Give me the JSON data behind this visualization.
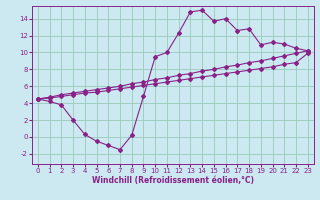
{
  "bg_color": "#cce8f0",
  "line_color": "#882288",
  "grid_color": "#99ccbb",
  "xlim": [
    -0.5,
    23.5
  ],
  "ylim": [
    -3.2,
    15.5
  ],
  "xticks": [
    0,
    1,
    2,
    3,
    4,
    5,
    6,
    7,
    8,
    9,
    10,
    11,
    12,
    13,
    14,
    15,
    16,
    17,
    18,
    19,
    20,
    21,
    22,
    23
  ],
  "yticks": [
    -2,
    0,
    2,
    4,
    6,
    8,
    10,
    12,
    14
  ],
  "curve1_x": [
    0,
    1,
    2,
    3,
    4,
    5,
    6,
    7,
    8,
    9,
    10,
    11,
    12,
    13,
    14,
    15,
    16,
    17,
    18,
    19,
    20,
    21,
    22,
    23
  ],
  "curve1_y": [
    4.5,
    4.2,
    3.8,
    2.0,
    0.3,
    -0.5,
    -1.0,
    -1.5,
    0.2,
    4.8,
    9.5,
    10.0,
    12.3,
    14.8,
    15.0,
    13.7,
    14.0,
    12.6,
    12.8,
    10.9,
    11.2,
    11.0,
    10.5,
    10.2
  ],
  "curve2_x": [
    0,
    1,
    2,
    3,
    4,
    5,
    6,
    7,
    8,
    9,
    10,
    11,
    12,
    13,
    14,
    15,
    16,
    17,
    18,
    19,
    20,
    21,
    22,
    23
  ],
  "curve2_y": [
    4.5,
    4.7,
    5.0,
    5.2,
    5.4,
    5.6,
    5.8,
    6.0,
    6.3,
    6.5,
    6.8,
    7.0,
    7.3,
    7.5,
    7.8,
    8.0,
    8.3,
    8.5,
    8.8,
    9.0,
    9.3,
    9.6,
    9.9,
    10.2
  ],
  "curve3_x": [
    0,
    1,
    2,
    3,
    4,
    5,
    6,
    7,
    8,
    9,
    10,
    11,
    12,
    13,
    14,
    15,
    16,
    17,
    18,
    19,
    20,
    21,
    22,
    23
  ],
  "curve3_y": [
    4.5,
    4.6,
    4.8,
    5.0,
    5.2,
    5.3,
    5.5,
    5.7,
    5.9,
    6.1,
    6.3,
    6.5,
    6.7,
    6.9,
    7.1,
    7.3,
    7.5,
    7.7,
    7.9,
    8.1,
    8.3,
    8.6,
    8.8,
    9.9
  ],
  "xlabel": "Windchill (Refroidissement éolien,°C)",
  "tick_fontsize": 5.0,
  "xlabel_fontsize": 5.5,
  "marker": "D",
  "markersize": 2.0,
  "linewidth": 0.8
}
